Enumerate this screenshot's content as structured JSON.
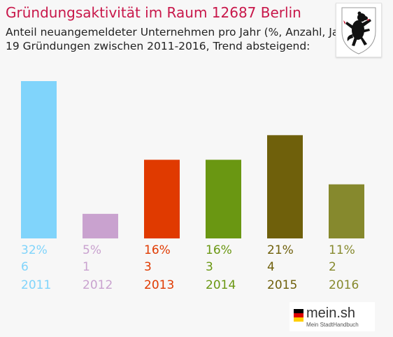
{
  "header": {
    "title": "Gründungsaktivität im Raum 12687 Berlin",
    "subtitle_line1": "Anteil neuangemeldeter Unternehmen pro Jahr (%, Anzahl, Jahr)",
    "subtitle_line2": "19 Gründungen zwischen 2011-2016, Trend absteigend:"
  },
  "logo": {
    "name": "mein.sh",
    "tagline": "Mein StadtHandbuch"
  },
  "chart_data": {
    "type": "bar",
    "categories": [
      "2011",
      "2012",
      "2013",
      "2014",
      "2015",
      "2016"
    ],
    "percent_labels": [
      "32%",
      "5%",
      "16%",
      "16%",
      "21%",
      "11%"
    ],
    "count_labels": [
      "6",
      "1",
      "3",
      "3",
      "4",
      "2"
    ],
    "values": [
      32,
      5,
      16,
      16,
      21,
      11
    ],
    "colors": [
      "#80d4fb",
      "#c9a2cf",
      "#e03a00",
      "#6a9712",
      "#6f600b",
      "#86892d"
    ],
    "title": "Gründungsaktivität im Raum 12687 Berlin",
    "grid": false,
    "legend": "none"
  }
}
